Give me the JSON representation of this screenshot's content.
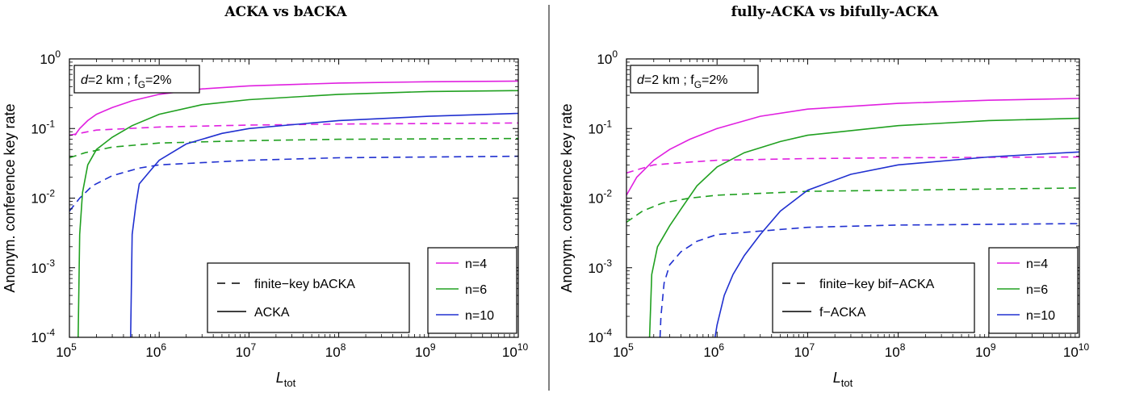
{
  "figure": {
    "divider": true
  },
  "chart_data": [
    {
      "type": "line",
      "title": "ACKA vs bACKA",
      "xlabel": "L",
      "xlabel_sub": "tot",
      "ylabel": "Anonym. conference key rate",
      "xscale": "log",
      "yscale": "log",
      "xlim": [
        100000,
        10000000000
      ],
      "ylim": [
        0.0001,
        1
      ],
      "x_ticks": [
        {
          "base": "10",
          "exp": "5",
          "value": 100000
        },
        {
          "base": "10",
          "exp": "6",
          "value": 1000000
        },
        {
          "base": "10",
          "exp": "7",
          "value": 10000000
        },
        {
          "base": "10",
          "exp": "8",
          "value": 100000000
        },
        {
          "base": "10",
          "exp": "9",
          "value": 1000000000
        },
        {
          "base": "10",
          "exp": "10",
          "value": 10000000000
        }
      ],
      "y_ticks": [
        {
          "base": "10",
          "exp": "0",
          "value": 1
        },
        {
          "base": "10",
          "exp": "-1",
          "value": 0.1
        },
        {
          "base": "10",
          "exp": "-2",
          "value": 0.01
        },
        {
          "base": "10",
          "exp": "-3",
          "value": 0.001
        },
        {
          "base": "10",
          "exp": "-4",
          "value": 0.0001
        }
      ],
      "annotation": {
        "d": "d",
        "d_value": "=2 km ; f",
        "sub": "G",
        "rest": "=2%"
      },
      "legend_colors": {
        "position": "bottom-right",
        "entries": [
          {
            "label": "n=4",
            "color": "#e020e0"
          },
          {
            "label": "n=6",
            "color": "#20a020"
          },
          {
            "label": "n=10",
            "color": "#2030d0"
          }
        ]
      },
      "legend_styles": {
        "position": "bottom-center",
        "entries": [
          {
            "label": "finite−key bACKA",
            "dash": true
          },
          {
            "label": "ACKA",
            "dash": false
          }
        ]
      },
      "series": [
        {
          "color": "#e020e0",
          "dashed": false,
          "points": [
            [
              115000,
              0.08
            ],
            [
              130000,
              0.1
            ],
            [
              160000,
              0.13
            ],
            [
              200000,
              0.16
            ],
            [
              300000,
              0.2
            ],
            [
              500000,
              0.25
            ],
            [
              1000000,
              0.31
            ],
            [
              3000000,
              0.37
            ],
            [
              10000000,
              0.41
            ],
            [
              100000000,
              0.45
            ],
            [
              1000000000,
              0.47
            ],
            [
              10000000000,
              0.48
            ]
          ]
        },
        {
          "color": "#e020e0",
          "dashed": true,
          "points": [
            [
              100000,
              0.08
            ],
            [
              200000,
              0.095
            ],
            [
              1000000,
              0.105
            ],
            [
              10000000,
              0.112
            ],
            [
              100000000,
              0.116
            ],
            [
              1000000000,
              0.118
            ],
            [
              10000000000,
              0.12
            ]
          ]
        },
        {
          "color": "#20a020",
          "dashed": false,
          "points": [
            [
              125000,
              0.0001
            ],
            [
              130000,
              0.003
            ],
            [
              140000,
              0.012
            ],
            [
              160000,
              0.03
            ],
            [
              200000,
              0.05
            ],
            [
              300000,
              0.075
            ],
            [
              500000,
              0.11
            ],
            [
              1000000,
              0.16
            ],
            [
              3000000,
              0.22
            ],
            [
              10000000,
              0.26
            ],
            [
              100000000,
              0.31
            ],
            [
              1000000000,
              0.34
            ],
            [
              10000000000,
              0.35
            ]
          ]
        },
        {
          "color": "#20a020",
          "dashed": true,
          "points": [
            [
              100000,
              0.038
            ],
            [
              150000,
              0.045
            ],
            [
              300000,
              0.054
            ],
            [
              1000000,
              0.062
            ],
            [
              10000000,
              0.067
            ],
            [
              100000000,
              0.07
            ],
            [
              10000000000,
              0.072
            ]
          ]
        },
        {
          "color": "#2030d0",
          "dashed": false,
          "points": [
            [
              480000,
              0.0001
            ],
            [
              500000,
              0.003
            ],
            [
              550000,
              0.008
            ],
            [
              600000,
              0.016
            ],
            [
              800000,
              0.025
            ],
            [
              1000000,
              0.035
            ],
            [
              2000000,
              0.06
            ],
            [
              5000000,
              0.085
            ],
            [
              10000000,
              0.1
            ],
            [
              100000000,
              0.13
            ],
            [
              1000000000,
              0.15
            ],
            [
              10000000000,
              0.165
            ]
          ]
        },
        {
          "color": "#2030d0",
          "dashed": true,
          "points": [
            [
              100000,
              0.0065
            ],
            [
              130000,
              0.01
            ],
            [
              180000,
              0.015
            ],
            [
              300000,
              0.021
            ],
            [
              600000,
              0.027
            ],
            [
              1000000,
              0.03
            ],
            [
              10000000,
              0.035
            ],
            [
              100000000,
              0.038
            ],
            [
              10000000000,
              0.04
            ]
          ]
        }
      ]
    },
    {
      "type": "line",
      "title": "fully-ACKA vs bifully-ACKA",
      "xlabel": "L",
      "xlabel_sub": "tot",
      "ylabel": "Anonym. conference key rate",
      "xscale": "log",
      "yscale": "log",
      "xlim": [
        100000,
        10000000000
      ],
      "ylim": [
        0.0001,
        1
      ],
      "x_ticks": [
        {
          "base": "10",
          "exp": "5",
          "value": 100000
        },
        {
          "base": "10",
          "exp": "6",
          "value": 1000000
        },
        {
          "base": "10",
          "exp": "7",
          "value": 10000000
        },
        {
          "base": "10",
          "exp": "8",
          "value": 100000000
        },
        {
          "base": "10",
          "exp": "9",
          "value": 1000000000
        },
        {
          "base": "10",
          "exp": "10",
          "value": 10000000000
        }
      ],
      "y_ticks": [
        {
          "base": "10",
          "exp": "0",
          "value": 1
        },
        {
          "base": "10",
          "exp": "-1",
          "value": 0.1
        },
        {
          "base": "10",
          "exp": "-2",
          "value": 0.01
        },
        {
          "base": "10",
          "exp": "-3",
          "value": 0.001
        },
        {
          "base": "10",
          "exp": "-4",
          "value": 0.0001
        }
      ],
      "annotation": {
        "d": "d",
        "d_value": "=2 km ; f",
        "sub": "G",
        "rest": "=2%"
      },
      "legend_colors": {
        "position": "bottom-right",
        "entries": [
          {
            "label": "n=4",
            "color": "#e020e0"
          },
          {
            "label": "n=6",
            "color": "#20a020"
          },
          {
            "label": "n=10",
            "color": "#2030d0"
          }
        ]
      },
      "legend_styles": {
        "position": "bottom-center",
        "entries": [
          {
            "label": "finite−key bif−ACKA",
            "dash": true
          },
          {
            "label": "f−ACKA",
            "dash": false
          }
        ]
      },
      "series": [
        {
          "color": "#e020e0",
          "dashed": false,
          "points": [
            [
              100000,
              0.011
            ],
            [
              130000,
              0.02
            ],
            [
              200000,
              0.035
            ],
            [
              300000,
              0.05
            ],
            [
              500000,
              0.07
            ],
            [
              1000000,
              0.1
            ],
            [
              3000000,
              0.15
            ],
            [
              10000000,
              0.19
            ],
            [
              100000000,
              0.23
            ],
            [
              1000000000,
              0.255
            ],
            [
              10000000000,
              0.27
            ]
          ]
        },
        {
          "color": "#e020e0",
          "dashed": true,
          "points": [
            [
              100000,
              0.023
            ],
            [
              200000,
              0.03
            ],
            [
              500000,
              0.033
            ],
            [
              1000000,
              0.035
            ],
            [
              10000000,
              0.037
            ],
            [
              100000000,
              0.038
            ],
            [
              10000000000,
              0.039
            ]
          ]
        },
        {
          "color": "#20a020",
          "dashed": false,
          "points": [
            [
              180000,
              0.0001
            ],
            [
              190000,
              0.0008
            ],
            [
              220000,
              0.002
            ],
            [
              300000,
              0.004
            ],
            [
              400000,
              0.007
            ],
            [
              600000,
              0.015
            ],
            [
              1000000,
              0.028
            ],
            [
              2000000,
              0.045
            ],
            [
              5000000,
              0.065
            ],
            [
              10000000,
              0.08
            ],
            [
              100000000,
              0.11
            ],
            [
              1000000000,
              0.13
            ],
            [
              10000000000,
              0.14
            ]
          ]
        },
        {
          "color": "#20a020",
          "dashed": true,
          "points": [
            [
              100000,
              0.0045
            ],
            [
              150000,
              0.0065
            ],
            [
              250000,
              0.0085
            ],
            [
              500000,
              0.01
            ],
            [
              1000000,
              0.011
            ],
            [
              10000000,
              0.0125
            ],
            [
              100000000,
              0.013
            ],
            [
              10000000000,
              0.014
            ]
          ]
        },
        {
          "color": "#2030d0",
          "dashed": false,
          "points": [
            [
              950000,
              0.0001
            ],
            [
              1000000,
              0.00015
            ],
            [
              1200000,
              0.0004
            ],
            [
              1500000,
              0.0008
            ],
            [
              2000000,
              0.0015
            ],
            [
              3000000,
              0.003
            ],
            [
              5000000,
              0.0065
            ],
            [
              10000000,
              0.013
            ],
            [
              30000000,
              0.022
            ],
            [
              100000000,
              0.03
            ],
            [
              1000000000,
              0.039
            ],
            [
              10000000000,
              0.046
            ]
          ]
        },
        {
          "color": "#2030d0",
          "dashed": true,
          "points": [
            [
              235000,
              0.0001
            ],
            [
              240000,
              0.0002
            ],
            [
              260000,
              0.0006
            ],
            [
              300000,
              0.0011
            ],
            [
              400000,
              0.0017
            ],
            [
              600000,
              0.0024
            ],
            [
              1000000,
              0.003
            ],
            [
              10000000,
              0.0038
            ],
            [
              100000000,
              0.0041
            ],
            [
              10000000000,
              0.0043
            ]
          ]
        }
      ]
    }
  ]
}
